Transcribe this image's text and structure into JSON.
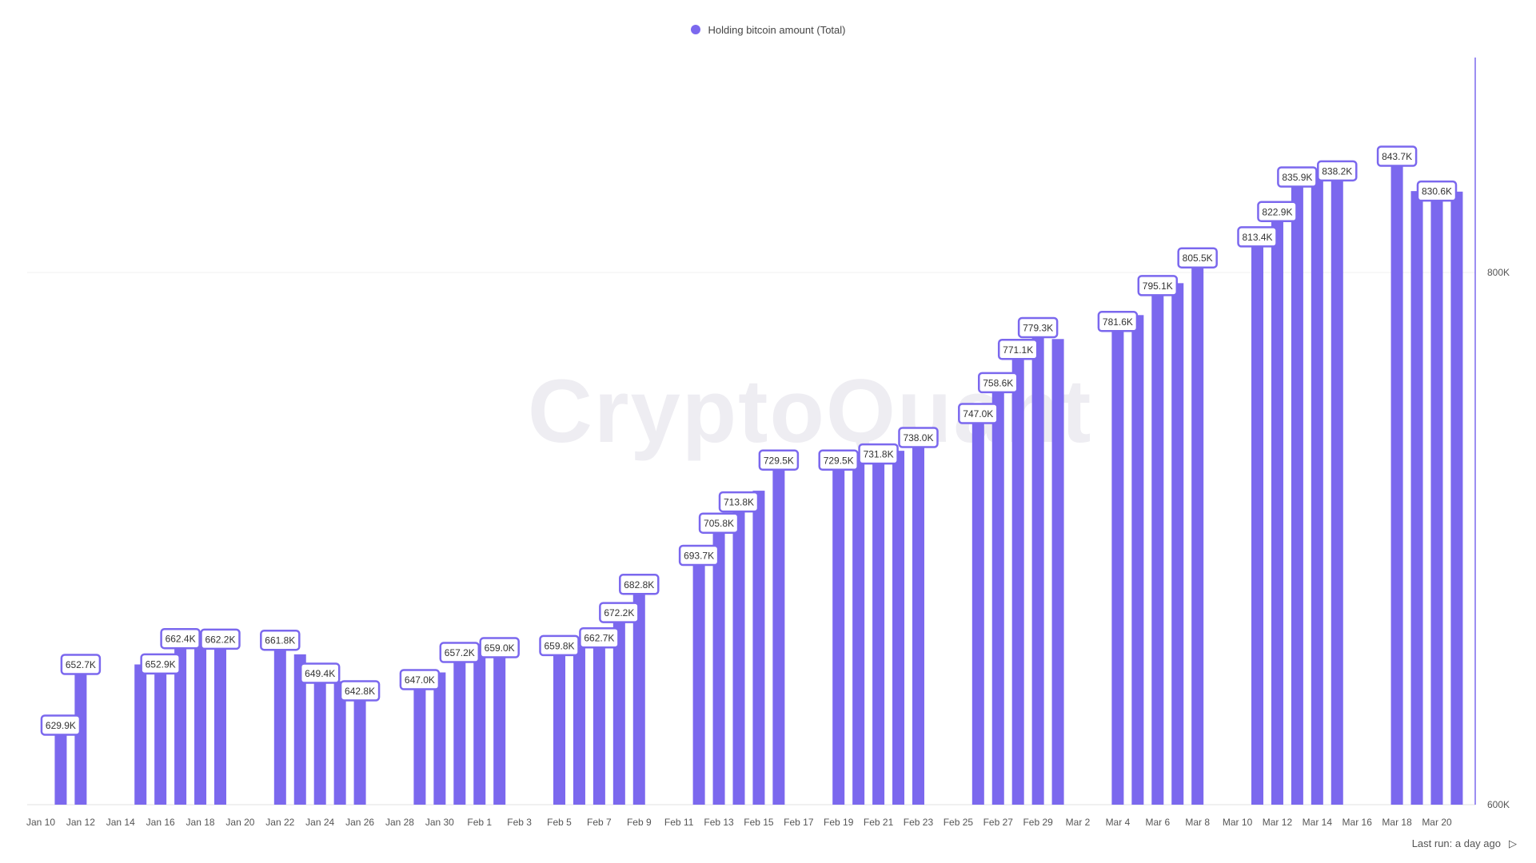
{
  "watermark": "CryptoQuant",
  "footer": {
    "last_run": "Last run: a day ago",
    "play_icon": "play-icon"
  },
  "colors": {
    "bar": "#7b68ee",
    "label_border": "#7b68ee",
    "grid": "#f0f0f0",
    "axis": "#7b68ee"
  },
  "chart_data": {
    "type": "bar",
    "legend": {
      "label": "Holding bitcoin amount (Total)",
      "position": "top-center"
    },
    "ylim": [
      600000,
      885000
    ],
    "y_ticks": [
      {
        "value": 600000,
        "label": "600K"
      },
      {
        "value": 800000,
        "label": "800K"
      }
    ],
    "x_ticks": [
      "Jan 10",
      "Jan 12",
      "Jan 14",
      "Jan 16",
      "Jan 18",
      "Jan 20",
      "Jan 22",
      "Jan 24",
      "Jan 26",
      "Jan 28",
      "Jan 30",
      "Feb 1",
      "Feb 3",
      "Feb 5",
      "Feb 7",
      "Feb 9",
      "Feb 11",
      "Feb 13",
      "Feb 15",
      "Feb 17",
      "Feb 19",
      "Feb 21",
      "Feb 23",
      "Feb 25",
      "Feb 27",
      "Feb 29",
      "Mar 2",
      "Mar 4",
      "Mar 6",
      "Mar 8",
      "Mar 10",
      "Mar 12",
      "Mar 14",
      "Mar 16",
      "Mar 18",
      "Mar 20"
    ],
    "grid": true,
    "series": [
      {
        "name": "Holding bitcoin amount (Total)",
        "points": [
          {
            "date": "Jan 11",
            "value": 629900,
            "label": "629.9K"
          },
          {
            "date": "Jan 12",
            "value": 652700,
            "label": "652.7K"
          },
          {
            "date": "Jan 15",
            "value": 652700
          },
          {
            "date": "Jan 16",
            "value": 652900,
            "label": "652.9K"
          },
          {
            "date": "Jan 17",
            "value": 662400,
            "label": "662.4K"
          },
          {
            "date": "Jan 18",
            "value": 662200
          },
          {
            "date": "Jan 19",
            "value": 662200,
            "label": "662.2K"
          },
          {
            "date": "Jan 22",
            "value": 661800,
            "label": "661.8K"
          },
          {
            "date": "Jan 23",
            "value": 656500
          },
          {
            "date": "Jan 24",
            "value": 649400,
            "label": "649.4K"
          },
          {
            "date": "Jan 25",
            "value": 646400
          },
          {
            "date": "Jan 26",
            "value": 642800,
            "label": "642.8K"
          },
          {
            "date": "Jan 29",
            "value": 647000,
            "label": "647.0K"
          },
          {
            "date": "Jan 30",
            "value": 649700
          },
          {
            "date": "Jan 31",
            "value": 657200,
            "label": "657.2K"
          },
          {
            "date": "Feb 1",
            "value": 656900
          },
          {
            "date": "Feb 2",
            "value": 659000,
            "label": "659.0K"
          },
          {
            "date": "Feb 5",
            "value": 659800,
            "label": "659.8K"
          },
          {
            "date": "Feb 6",
            "value": 659400
          },
          {
            "date": "Feb 7",
            "value": 662700,
            "label": "662.7K"
          },
          {
            "date": "Feb 8",
            "value": 672200,
            "label": "672.2K"
          },
          {
            "date": "Feb 9",
            "value": 682800,
            "label": "682.8K"
          },
          {
            "date": "Feb 12",
            "value": 693700,
            "label": "693.7K"
          },
          {
            "date": "Feb 13",
            "value": 705800,
            "label": "705.8K"
          },
          {
            "date": "Feb 14",
            "value": 713800,
            "label": "713.8K"
          },
          {
            "date": "Feb 15",
            "value": 718000
          },
          {
            "date": "Feb 16",
            "value": 729500,
            "label": "729.5K"
          },
          {
            "date": "Feb 19",
            "value": 729500,
            "label": "729.5K"
          },
          {
            "date": "Feb 20",
            "value": 731000
          },
          {
            "date": "Feb 21",
            "value": 731800,
            "label": "731.8K"
          },
          {
            "date": "Feb 22",
            "value": 733000
          },
          {
            "date": "Feb 23",
            "value": 738000,
            "label": "738.0K"
          },
          {
            "date": "Feb 26",
            "value": 747000,
            "label": "747.0K"
          },
          {
            "date": "Feb 27",
            "value": 758600,
            "label": "758.6K"
          },
          {
            "date": "Feb 28",
            "value": 771100,
            "label": "771.1K"
          },
          {
            "date": "Feb 29",
            "value": 779300,
            "label": "779.3K"
          },
          {
            "date": "Mar 1",
            "value": 775000
          },
          {
            "date": "Mar 4",
            "value": 781600,
            "label": "781.6K"
          },
          {
            "date": "Mar 5",
            "value": 784000
          },
          {
            "date": "Mar 6",
            "value": 795100,
            "label": "795.1K"
          },
          {
            "date": "Mar 7",
            "value": 796000
          },
          {
            "date": "Mar 8",
            "value": 805500,
            "label": "805.5K"
          },
          {
            "date": "Mar 11",
            "value": 813400,
            "label": "813.4K"
          },
          {
            "date": "Mar 12",
            "value": 822900,
            "label": "822.9K"
          },
          {
            "date": "Mar 13",
            "value": 835900,
            "label": "835.9K"
          },
          {
            "date": "Mar 14",
            "value": 836000
          },
          {
            "date": "Mar 15",
            "value": 838200,
            "label": "838.2K"
          },
          {
            "date": "Mar 18",
            "value": 843700,
            "label": "843.7K"
          },
          {
            "date": "Mar 19",
            "value": 830600
          },
          {
            "date": "Mar 20",
            "value": 830600,
            "label": "830.6K"
          },
          {
            "date": "Mar 21",
            "value": 830400
          }
        ]
      }
    ]
  }
}
